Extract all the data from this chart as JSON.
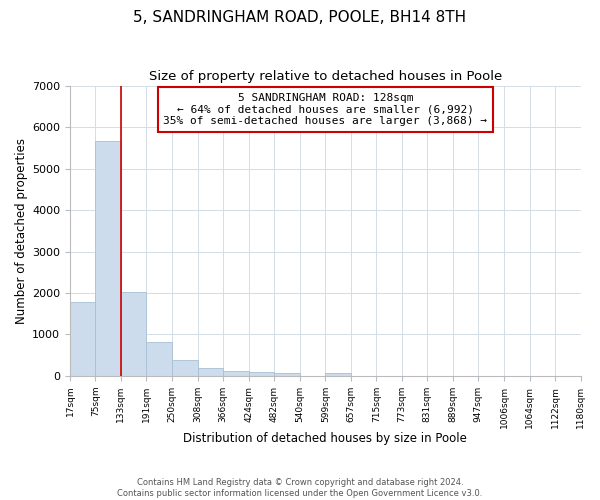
{
  "title": "5, SANDRINGHAM ROAD, POOLE, BH14 8TH",
  "subtitle": "Size of property relative to detached houses in Poole",
  "xlabel": "Distribution of detached houses by size in Poole",
  "ylabel": "Number of detached properties",
  "bar_color": "#ccdcec",
  "bar_edge_color": "#a8c0d4",
  "vline_color": "#cc0000",
  "vline_x": 133,
  "bin_edges": [
    17,
    75,
    133,
    191,
    250,
    308,
    366,
    424,
    482,
    540,
    599,
    657,
    715,
    773,
    831,
    889,
    947,
    1006,
    1064,
    1122,
    1180
  ],
  "bin_labels": [
    "17sqm",
    "75sqm",
    "133sqm",
    "191sqm",
    "250sqm",
    "308sqm",
    "366sqm",
    "424sqm",
    "482sqm",
    "540sqm",
    "599sqm",
    "657sqm",
    "715sqm",
    "773sqm",
    "831sqm",
    "889sqm",
    "947sqm",
    "1006sqm",
    "1064sqm",
    "1122sqm",
    "1180sqm"
  ],
  "counts": [
    1780,
    5660,
    2020,
    810,
    375,
    195,
    130,
    100,
    65,
    0,
    75,
    0,
    0,
    0,
    0,
    0,
    0,
    0,
    0,
    0
  ],
  "ylim": [
    0,
    7000
  ],
  "yticks": [
    0,
    1000,
    2000,
    3000,
    4000,
    5000,
    6000,
    7000
  ],
  "annotation_title": "5 SANDRINGHAM ROAD: 128sqm",
  "annotation_line1": "← 64% of detached houses are smaller (6,992)",
  "annotation_line2": "35% of semi-detached houses are larger (3,868) →",
  "annotation_box_color": "#ffffff",
  "annotation_border_color": "#cc0000",
  "footer_line1": "Contains HM Land Registry data © Crown copyright and database right 2024.",
  "footer_line2": "Contains public sector information licensed under the Open Government Licence v3.0.",
  "background_color": "#ffffff",
  "grid_color": "#d4dde6"
}
